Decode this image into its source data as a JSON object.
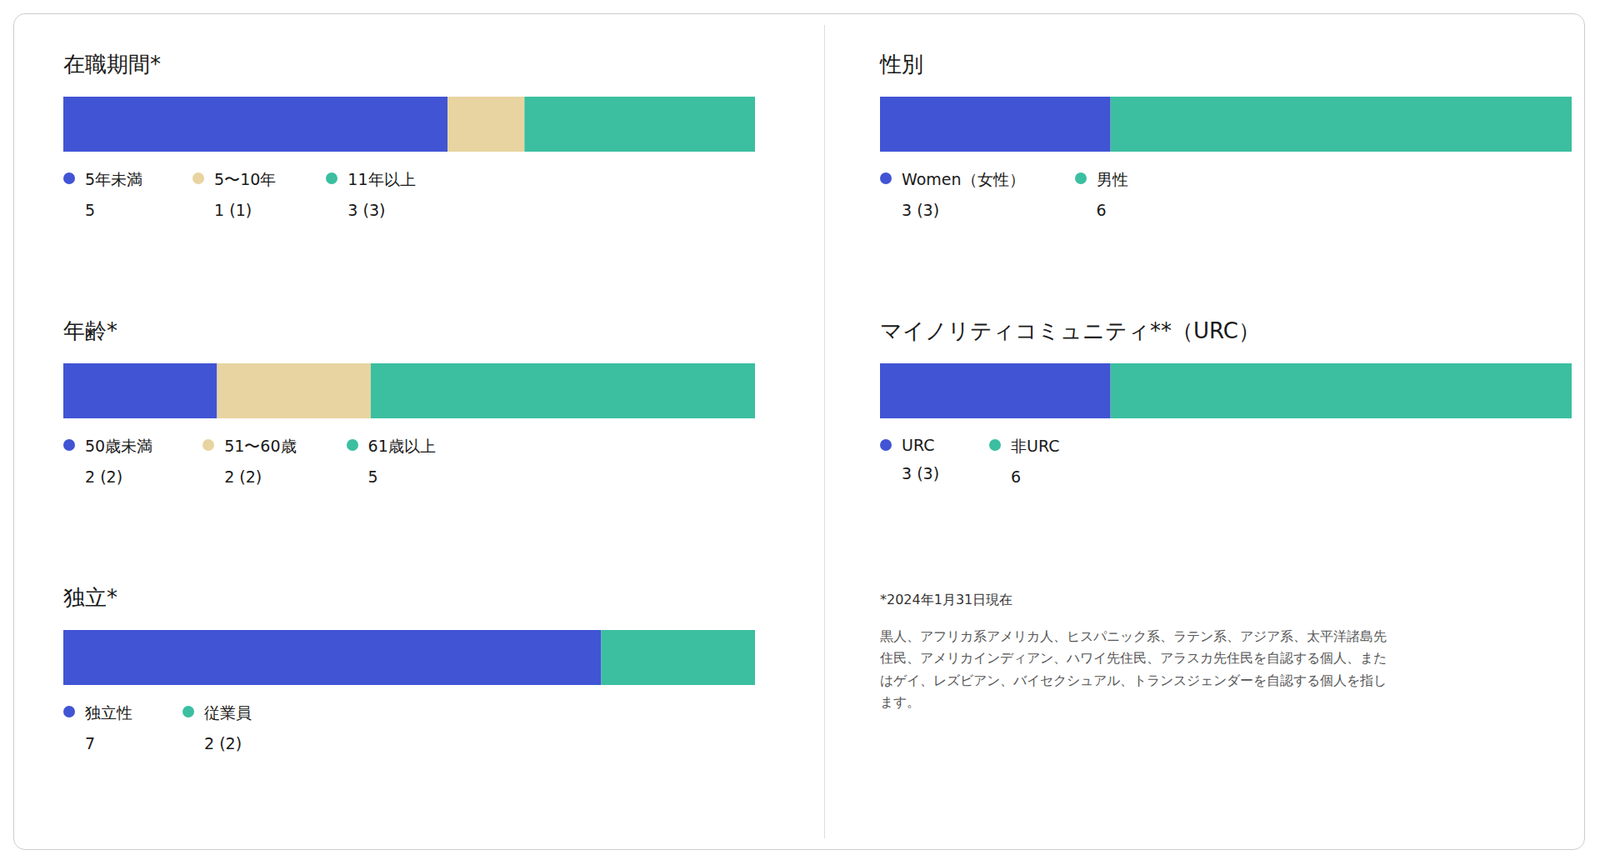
{
  "chart_data": [
    {
      "type": "bar",
      "title": "在職期間*",
      "orientation": "horizontal",
      "stacked": true,
      "data_labels": true,
      "tick_labels": false,
      "grid": false,
      "legend": "bottom",
      "categories": [
        null
      ],
      "xlim": [
        0,
        9
      ],
      "series": [
        {
          "name": "5年未満",
          "color": "#4154d4",
          "values": [
            5
          ],
          "value_labels": [
            "5"
          ]
        },
        {
          "name": "5〜10年",
          "color": "#e8d4a0",
          "values": [
            1
          ],
          "value_labels": [
            "1  (1)"
          ]
        },
        {
          "name": "11年以上",
          "color": "#3bbfa0",
          "values": [
            3
          ],
          "value_labels": [
            "3  (3)"
          ]
        }
      ]
    },
    {
      "type": "bar",
      "title": "性別",
      "orientation": "horizontal",
      "stacked": true,
      "data_labels": true,
      "tick_labels": false,
      "grid": false,
      "legend": "bottom",
      "categories": [
        null
      ],
      "xlim": [
        0,
        9
      ],
      "series": [
        {
          "name": "Women（女性）",
          "color": "#4154d4",
          "values": [
            3
          ],
          "value_labels": [
            "3  (3)"
          ]
        },
        {
          "name": "男性",
          "color": "#3bbfa0",
          "values": [
            6
          ],
          "value_labels": [
            "6"
          ]
        }
      ]
    },
    {
      "type": "bar",
      "title": "年齢*",
      "orientation": "horizontal",
      "stacked": true,
      "data_labels": true,
      "tick_labels": false,
      "grid": false,
      "legend": "bottom",
      "categories": [
        null
      ],
      "xlim": [
        0,
        9
      ],
      "series": [
        {
          "name": "50歳未満",
          "color": "#4154d4",
          "values": [
            2
          ],
          "value_labels": [
            "2  (2)"
          ]
        },
        {
          "name": "51〜60歳",
          "color": "#e8d4a0",
          "values": [
            2
          ],
          "value_labels": [
            "2  (2)"
          ]
        },
        {
          "name": "61歳以上",
          "color": "#3bbfa0",
          "values": [
            5
          ],
          "value_labels": [
            "5"
          ]
        }
      ]
    },
    {
      "type": "bar",
      "title": "マイノリティコミュニティ**（URC）",
      "orientation": "horizontal",
      "stacked": true,
      "data_labels": true,
      "tick_labels": false,
      "grid": false,
      "legend": "bottom",
      "categories": [
        null
      ],
      "xlim": [
        0,
        9
      ],
      "series": [
        {
          "name": "URC",
          "color": "#4154d4",
          "values": [
            3
          ],
          "value_labels": [
            "3  (3)"
          ]
        },
        {
          "name": "非URC",
          "color": "#3bbfa0",
          "values": [
            6
          ],
          "value_labels": [
            "6"
          ]
        }
      ],
      "annotations": [
        "*2024年1月31日現在",
        "黒人、アフリカ系アメリカ人、ヒスパニック系、ラテン系、アジア系、太平洋諸島先\n住民、アメリカインディアン、ハワイ先住民、アラスカ先住民を自認する個人、また\nはゲイ、レズビアン、バイセクシュアル、トランスジェンダーを自認する個人を指し\nます。"
      ]
    },
    {
      "type": "bar",
      "title": "独立*",
      "orientation": "horizontal",
      "stacked": true,
      "data_labels": true,
      "tick_labels": false,
      "grid": false,
      "legend": "bottom",
      "categories": [
        null
      ],
      "xlim": [
        0,
        9
      ],
      "series": [
        {
          "name": "独立性",
          "color": "#4154d4",
          "values": [
            7
          ],
          "value_labels": [
            "7"
          ]
        },
        {
          "name": "従業員",
          "color": "#3bbfa0",
          "values": [
            2
          ],
          "value_labels": [
            "2  (2)"
          ]
        }
      ]
    }
  ]
}
